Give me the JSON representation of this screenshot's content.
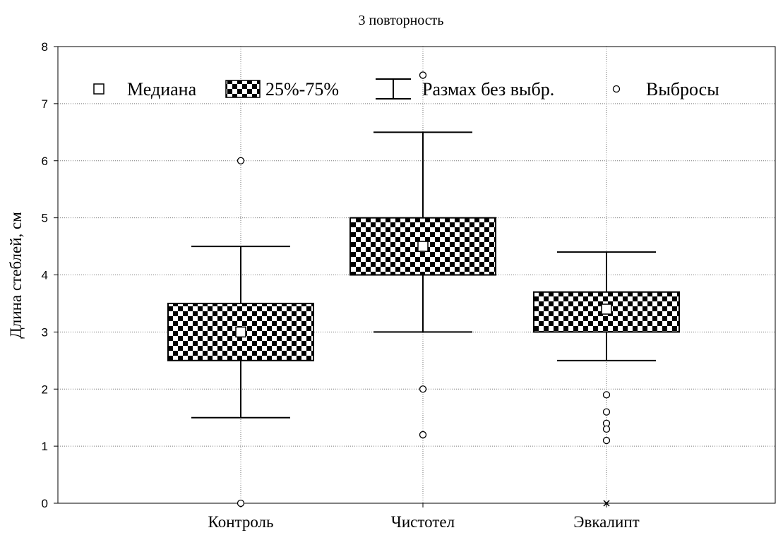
{
  "chart_data": {
    "type": "box",
    "title": "3 повторность",
    "xlabel": "",
    "ylabel": "Длина стеблей, см",
    "ylim": [
      0,
      8
    ],
    "yticks": [
      0,
      1,
      2,
      3,
      4,
      5,
      6,
      7,
      8
    ],
    "grid": true,
    "legend_position": "top",
    "categories": [
      "Контроль",
      "Чистотел",
      "Эвкалипт"
    ],
    "boxes": [
      {
        "category": "Контроль",
        "whisker_low": 1.5,
        "q1": 2.5,
        "median": 3.0,
        "q3": 3.5,
        "whisker_high": 4.5,
        "outliers": [
          6.0,
          0.0
        ],
        "extremes": []
      },
      {
        "category": "Чистотел",
        "whisker_low": 3.0,
        "q1": 4.0,
        "median": 4.5,
        "q3": 5.0,
        "whisker_high": 6.5,
        "outliers": [
          7.5,
          2.0,
          1.2
        ],
        "extremes": []
      },
      {
        "category": "Эвкалипт",
        "whisker_low": 2.5,
        "q1": 3.0,
        "median": 3.4,
        "q3": 3.7,
        "whisker_high": 4.4,
        "outliers": [
          1.9,
          1.6,
          1.4,
          1.3,
          1.1
        ],
        "extremes": [
          0.0
        ]
      }
    ],
    "legend": [
      {
        "symbol": "median",
        "label": "Медиана"
      },
      {
        "symbol": "box",
        "label": "25%-75%"
      },
      {
        "symbol": "whisker",
        "label": "Размах без выбр."
      },
      {
        "symbol": "outlier",
        "label": "Выбросы"
      }
    ]
  }
}
